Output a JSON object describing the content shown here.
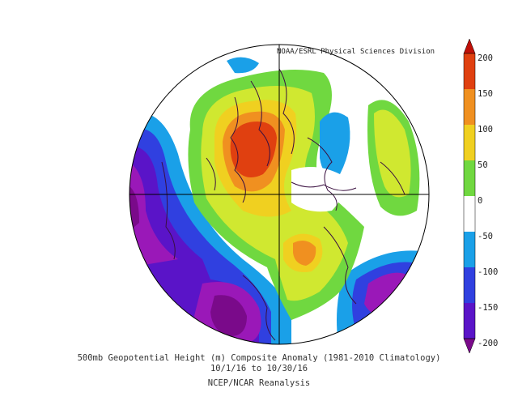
{
  "map": {
    "credit": "NOAA/ESRL Physical Sciences Division",
    "caption_line1": "500mb Geopotential Height (m) Composite Anomaly (1981-2010 Climatology)",
    "caption_line2": "10/1/16  to 10/30/16",
    "caption_line3": "NCEP/NCAR Reanalysis"
  },
  "colorbar": {
    "ticks": [
      "200",
      "150",
      "100",
      "50",
      "0",
      "-50",
      "-100",
      "-150",
      "-200"
    ],
    "colors": [
      "#7a0a8a",
      "#9a18b8",
      "#5a14c8",
      "#3040e0",
      "#1aa0e8",
      "#ffffff",
      "#70d840",
      "#d0e830",
      "#f0d020",
      "#f09020",
      "#e04010",
      "#c01008"
    ]
  }
}
